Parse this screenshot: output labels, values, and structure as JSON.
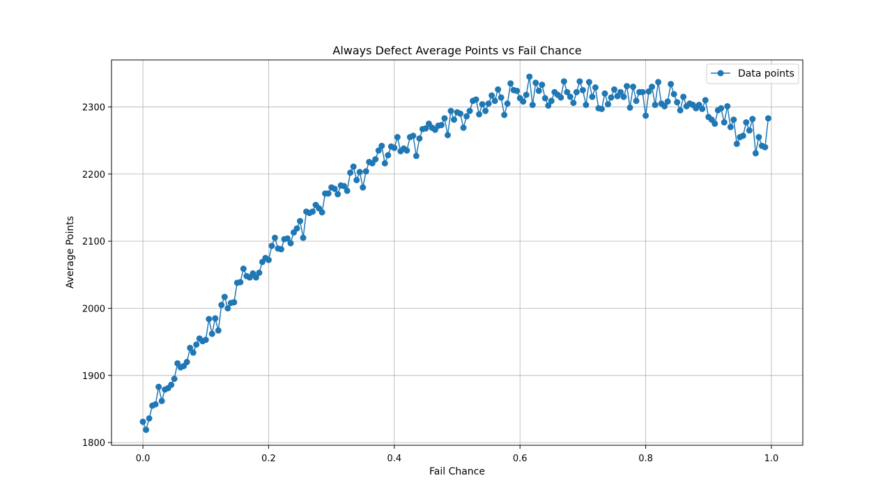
{
  "chart_data": {
    "type": "line",
    "title": "Always Defect Average Points vs Fail Chance",
    "xlabel": "Fail Chance",
    "ylabel": "Average Points",
    "xlim": [
      -0.05,
      1.05
    ],
    "ylim": [
      1796,
      2370
    ],
    "xticks": [
      0.0,
      0.2,
      0.4,
      0.6,
      0.8,
      1.0
    ],
    "xtick_labels": [
      "0.0",
      "0.2",
      "0.4",
      "0.6",
      "0.8",
      "1.0"
    ],
    "yticks": [
      1800,
      1900,
      2000,
      2100,
      2200,
      2300
    ],
    "ytick_labels": [
      "1800",
      "1900",
      "2000",
      "2100",
      "2200",
      "2300"
    ],
    "grid": true,
    "legend_position": "top-right",
    "series_color": "#1f77b4",
    "series": [
      {
        "name": "Data points",
        "x": [
          0.0,
          0.005,
          0.01,
          0.015,
          0.02,
          0.025,
          0.03,
          0.035,
          0.04,
          0.045,
          0.05,
          0.055,
          0.06,
          0.065,
          0.07,
          0.075,
          0.08,
          0.085,
          0.09,
          0.095,
          0.1,
          0.105,
          0.11,
          0.115,
          0.12,
          0.125,
          0.13,
          0.135,
          0.14,
          0.145,
          0.15,
          0.155,
          0.16,
          0.165,
          0.17,
          0.175,
          0.18,
          0.185,
          0.19,
          0.195,
          0.2,
          0.205,
          0.21,
          0.215,
          0.22,
          0.225,
          0.23,
          0.235,
          0.24,
          0.245,
          0.25,
          0.255,
          0.26,
          0.265,
          0.27,
          0.275,
          0.28,
          0.285,
          0.29,
          0.295,
          0.3,
          0.305,
          0.31,
          0.315,
          0.32,
          0.325,
          0.33,
          0.335,
          0.34,
          0.345,
          0.35,
          0.355,
          0.36,
          0.365,
          0.37,
          0.375,
          0.38,
          0.385,
          0.39,
          0.395,
          0.4,
          0.405,
          0.41,
          0.415,
          0.42,
          0.425,
          0.43,
          0.435,
          0.44,
          0.445,
          0.45,
          0.455,
          0.46,
          0.465,
          0.47,
          0.475,
          0.48,
          0.485,
          0.49,
          0.495,
          0.5,
          0.505,
          0.51,
          0.515,
          0.52,
          0.525,
          0.53,
          0.535,
          0.54,
          0.545,
          0.55,
          0.555,
          0.56,
          0.565,
          0.57,
          0.575,
          0.58,
          0.585,
          0.59,
          0.595,
          0.6,
          0.605,
          0.61,
          0.615,
          0.62,
          0.625,
          0.63,
          0.635,
          0.64,
          0.645,
          0.65,
          0.655,
          0.66,
          0.665,
          0.67,
          0.675,
          0.68,
          0.685,
          0.69,
          0.695,
          0.7,
          0.705,
          0.71,
          0.715,
          0.72,
          0.725,
          0.73,
          0.735,
          0.74,
          0.745,
          0.75,
          0.755,
          0.76,
          0.765,
          0.77,
          0.775,
          0.78,
          0.785,
          0.79,
          0.795,
          0.8,
          0.805,
          0.81,
          0.815,
          0.82,
          0.825,
          0.83,
          0.835,
          0.84,
          0.845,
          0.85,
          0.855,
          0.86,
          0.865,
          0.87,
          0.875,
          0.88,
          0.885,
          0.89,
          0.895,
          0.9,
          0.905,
          0.91,
          0.915,
          0.92,
          0.925,
          0.93,
          0.935,
          0.94,
          0.945,
          0.95,
          0.955,
          0.96,
          0.965,
          0.97,
          0.975,
          0.98,
          0.985,
          0.99,
          0.995
        ],
        "y": [
          1831,
          1819,
          1836,
          1855,
          1857,
          1883,
          1862,
          1879,
          1881,
          1886,
          1895,
          1918,
          1912,
          1914,
          1920,
          1941,
          1934,
          1946,
          1955,
          1951,
          1953,
          1984,
          1962,
          1985,
          1967,
          2005,
          2017,
          2000,
          2008,
          2009,
          2038,
          2039,
          2059,
          2048,
          2046,
          2052,
          2046,
          2053,
          2069,
          2075,
          2072,
          2093,
          2105,
          2089,
          2088,
          2103,
          2104,
          2097,
          2113,
          2119,
          2130,
          2105,
          2144,
          2142,
          2144,
          2154,
          2149,
          2143,
          2171,
          2171,
          2180,
          2178,
          2170,
          2183,
          2182,
          2175,
          2202,
          2211,
          2191,
          2203,
          2180,
          2204,
          2218,
          2216,
          2222,
          2235,
          2242,
          2216,
          2228,
          2241,
          2239,
          2255,
          2234,
          2238,
          2235,
          2255,
          2257,
          2227,
          2253,
          2267,
          2268,
          2275,
          2269,
          2266,
          2272,
          2273,
          2283,
          2258,
          2294,
          2281,
          2292,
          2290,
          2269,
          2286,
          2294,
          2309,
          2311,
          2289,
          2304,
          2294,
          2305,
          2317,
          2309,
          2326,
          2314,
          2288,
          2305,
          2335,
          2325,
          2324,
          2313,
          2308,
          2318,
          2345,
          2303,
          2336,
          2324,
          2333,
          2313,
          2302,
          2309,
          2322,
          2318,
          2314,
          2338,
          2322,
          2315,
          2306,
          2322,
          2338,
          2325,
          2303,
          2337,
          2315,
          2329,
          2298,
          2297,
          2320,
          2304,
          2314,
          2326,
          2316,
          2322,
          2315,
          2331,
          2299,
          2330,
          2309,
          2322,
          2322,
          2287,
          2323,
          2330,
          2303,
          2337,
          2305,
          2301,
          2308,
          2334,
          2319,
          2307,
          2295,
          2315,
          2301,
          2305,
          2303,
          2298,
          2303,
          2297,
          2310,
          2285,
          2281,
          2275,
          2295,
          2298,
          2277,
          2301,
          2270,
          2281,
          2245,
          2255,
          2257,
          2277,
          2265,
          2282,
          2231,
          2255,
          2242,
          2240,
          2283
        ]
      }
    ]
  }
}
